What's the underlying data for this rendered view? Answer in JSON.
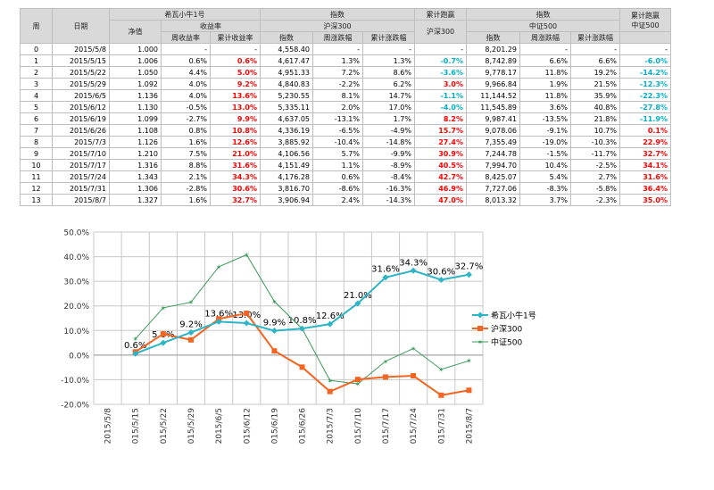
{
  "table": {
    "header": {
      "week": "周",
      "date": "日期",
      "fund_name": "希瓦小牛1号",
      "nav": "净值",
      "return_rate": "收益率",
      "week_return": "周收益率",
      "cum_return": "累计收益率",
      "index_label_1": "指数",
      "hs300": "沪深300",
      "index_col": "指数",
      "week_change": "周涨跌幅",
      "cum_change": "累计涨跌幅",
      "excess_label_1": "累计跑赢",
      "excess_sub_1": "沪深300",
      "index_label_2": "指数",
      "csi500": "中证500",
      "index_col_2": "指数",
      "week_change_2": "周涨跌幅",
      "cum_change_2": "累计涨跌幅",
      "excess_label_2": "累计跑赢",
      "excess_sub_2": "中证500"
    },
    "rows": [
      [
        "0",
        "2015/5/8",
        "1.000",
        "-",
        "-",
        "4,558.40",
        "-",
        "-",
        "-",
        "8,201.29",
        "-",
        "-",
        "-"
      ],
      [
        "1",
        "2015/5/15",
        "1.006",
        "0.6%",
        "0.6%",
        "4,617.47",
        "1.3%",
        "1.3%",
        "-0.7%",
        "8,742.89",
        "6.6%",
        "6.6%",
        "-6.0%"
      ],
      [
        "2",
        "2015/5/22",
        "1.050",
        "4.4%",
        "5.0%",
        "4,951.33",
        "7.2%",
        "8.6%",
        "-3.6%",
        "9,778.17",
        "11.8%",
        "19.2%",
        "-14.2%"
      ],
      [
        "3",
        "2015/5/29",
        "1.092",
        "4.0%",
        "9.2%",
        "4,840.83",
        "-2.2%",
        "6.2%",
        "3.0%",
        "9,966.84",
        "1.9%",
        "21.5%",
        "-12.3%"
      ],
      [
        "4",
        "2015/6/5",
        "1.136",
        "4.0%",
        "13.6%",
        "5,230.55",
        "8.1%",
        "14.7%",
        "-1.1%",
        "11,144.52",
        "11.8%",
        "35.9%",
        "-22.3%"
      ],
      [
        "5",
        "2015/6/12",
        "1.130",
        "-0.5%",
        "13.0%",
        "5,335.11",
        "2.0%",
        "17.0%",
        "-4.0%",
        "11,545.89",
        "3.6%",
        "40.8%",
        "-27.8%"
      ],
      [
        "6",
        "2015/6/19",
        "1.099",
        "-2.7%",
        "9.9%",
        "4,637.05",
        "-13.1%",
        "1.7%",
        "8.2%",
        "9,987.41",
        "-13.5%",
        "21.8%",
        "-11.9%"
      ],
      [
        "7",
        "2015/6/26",
        "1.108",
        "0.8%",
        "10.8%",
        "4,336.19",
        "-6.5%",
        "-4.9%",
        "15.7%",
        "9,078.06",
        "-9.1%",
        "10.7%",
        "0.1%"
      ],
      [
        "8",
        "2015/7/3",
        "1.126",
        "1.6%",
        "12.6%",
        "3,885.92",
        "-10.4%",
        "-14.8%",
        "27.4%",
        "7,355.49",
        "-19.0%",
        "-10.3%",
        "22.9%"
      ],
      [
        "9",
        "2015/7/10",
        "1.210",
        "7.5%",
        "21.0%",
        "4,106.56",
        "5.7%",
        "-9.9%",
        "30.9%",
        "7,244.78",
        "-1.5%",
        "-11.7%",
        "32.7%"
      ],
      [
        "10",
        "2015/7/17",
        "1.316",
        "8.8%",
        "31.6%",
        "4,151.49",
        "1.1%",
        "-8.9%",
        "40.5%",
        "7,994.70",
        "10.4%",
        "-2.5%",
        "34.1%"
      ],
      [
        "11",
        "2015/7/24",
        "1.343",
        "2.1%",
        "34.3%",
        "4,176.28",
        "0.6%",
        "-8.4%",
        "42.7%",
        "8,425.07",
        "5.4%",
        "2.7%",
        "31.6%"
      ],
      [
        "12",
        "2015/7/31",
        "1.306",
        "-2.8%",
        "30.6%",
        "3,816.70",
        "-8.6%",
        "-16.3%",
        "46.9%",
        "7,727.06",
        "-8.3%",
        "-5.8%",
        "36.4%"
      ],
      [
        "13",
        "2015/8/7",
        "1.327",
        "1.6%",
        "32.7%",
        "3,906.94",
        "2.4%",
        "-14.3%",
        "47.0%",
        "8,013.32",
        "3.7%",
        "-2.3%",
        "35.0%"
      ]
    ]
  },
  "colors": {
    "fund": "#2cb5c6",
    "hs300": "#f26522",
    "csi500": "#3a9b5a",
    "positive": "#ff0000",
    "negative": "#00b0c8"
  },
  "chart_data": {
    "type": "line",
    "title": "",
    "xlabel": "",
    "ylabel": "",
    "categories": [
      "2015/5/8",
      "2015/5/15",
      "2015/5/22",
      "2015/5/29",
      "2015/6/5",
      "2015/6/12",
      "2015/6/19",
      "2015/6/26",
      "2015/7/3",
      "2015/7/10",
      "2015/7/17",
      "2015/7/24",
      "2015/7/31",
      "2015/8/7"
    ],
    "tick_labels": [
      "2015/5/8",
      "015/5/15",
      "015/5/22",
      "015/5/29",
      "2015/6/5",
      "015/6/12",
      "015/6/19",
      "015/6/26",
      "2015/7/3",
      "015/7/10",
      "015/7/17",
      "015/7/24",
      "015/7/31",
      "2015/8/7"
    ],
    "ylim": [
      -20,
      50
    ],
    "yticks": [
      "-20.0%",
      "-10.0%",
      "0.0%",
      "10.0%",
      "20.0%",
      "30.0%",
      "40.0%",
      "50.0%"
    ],
    "ytick_values": [
      -20,
      -10,
      0,
      10,
      20,
      30,
      40,
      50
    ],
    "grid": true,
    "legend_position": "right",
    "series": [
      {
        "name": "希瓦小牛1号",
        "values": [
          null,
          0.6,
          5.0,
          9.2,
          13.6,
          13.0,
          9.9,
          10.8,
          12.6,
          21.0,
          31.6,
          34.3,
          30.6,
          32.7
        ],
        "labels": [
          "",
          "0.6%",
          "5.0%",
          "9.2%",
          "13.6%",
          "13.0%",
          "9.9%",
          "10.8%",
          "12.6%",
          "21.0%",
          "31.6%",
          "34.3%",
          "30.6%",
          "32.7%"
        ],
        "marker": "diamond"
      },
      {
        "name": "沪深300",
        "values": [
          null,
          1.3,
          8.6,
          6.2,
          14.7,
          17.0,
          1.7,
          -4.9,
          -14.8,
          -9.9,
          -8.9,
          -8.4,
          -16.3,
          -14.3
        ],
        "marker": "square"
      },
      {
        "name": "中证500",
        "values": [
          null,
          6.6,
          19.2,
          21.5,
          35.9,
          40.8,
          21.8,
          10.7,
          -10.3,
          -11.7,
          -2.5,
          2.7,
          -5.8,
          -2.3
        ],
        "marker": "star"
      }
    ]
  }
}
